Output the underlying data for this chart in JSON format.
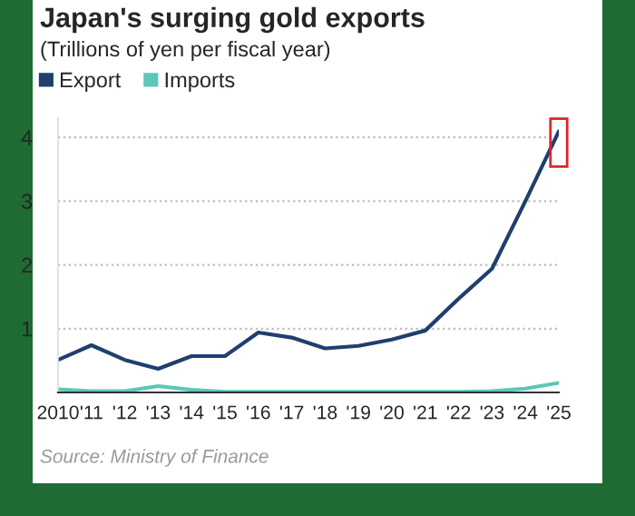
{
  "chart_data": {
    "type": "line",
    "title": "Japan's surging gold exports",
    "subtitle": "(Trillions of yen per fiscal year)",
    "x": [
      2010,
      2011,
      2012,
      2013,
      2014,
      2015,
      2016,
      2017,
      2018,
      2019,
      2020,
      2021,
      2022,
      2023,
      2024,
      2025
    ],
    "series": [
      {
        "name": "Export",
        "color": "#1f3f6e",
        "values": [
          0.51,
          0.74,
          0.51,
          0.37,
          0.57,
          0.57,
          0.94,
          0.86,
          0.69,
          0.73,
          0.83,
          0.97,
          1.47,
          1.94,
          3.0,
          4.09
        ]
      },
      {
        "name": "Imports",
        "color": "#5cc7b8",
        "values": [
          0.05,
          0.02,
          0.02,
          0.1,
          0.04,
          0.01,
          0.01,
          0.01,
          0.01,
          0.01,
          0.01,
          0.01,
          0.01,
          0.02,
          0.06,
          0.15
        ]
      }
    ],
    "xlim": [
      2010,
      2025
    ],
    "xticks": [
      {
        "value": 2010,
        "label": "2010"
      },
      {
        "value": 2011,
        "label": "'11"
      },
      {
        "value": 2012,
        "label": "'12"
      },
      {
        "value": 2013,
        "label": "'13"
      },
      {
        "value": 2014,
        "label": "'14"
      },
      {
        "value": 2015,
        "label": "'15"
      },
      {
        "value": 2016,
        "label": "'16"
      },
      {
        "value": 2017,
        "label": "'17"
      },
      {
        "value": 2018,
        "label": "'18"
      },
      {
        "value": 2019,
        "label": "'19"
      },
      {
        "value": 2020,
        "label": "'20"
      },
      {
        "value": 2021,
        "label": "'21"
      },
      {
        "value": 2022,
        "label": "'22"
      },
      {
        "value": 2023,
        "label": "'23"
      },
      {
        "value": 2024,
        "label": "'24"
      },
      {
        "value": 2025,
        "label": "'25"
      }
    ],
    "ylim": [
      0,
      4.3
    ],
    "yticks": [
      1,
      2,
      3,
      4
    ],
    "grid": "y",
    "legend": "top left",
    "marker": "none",
    "line_style": "solid",
    "annotations": [
      "Source: Ministry of Finance"
    ]
  }
}
